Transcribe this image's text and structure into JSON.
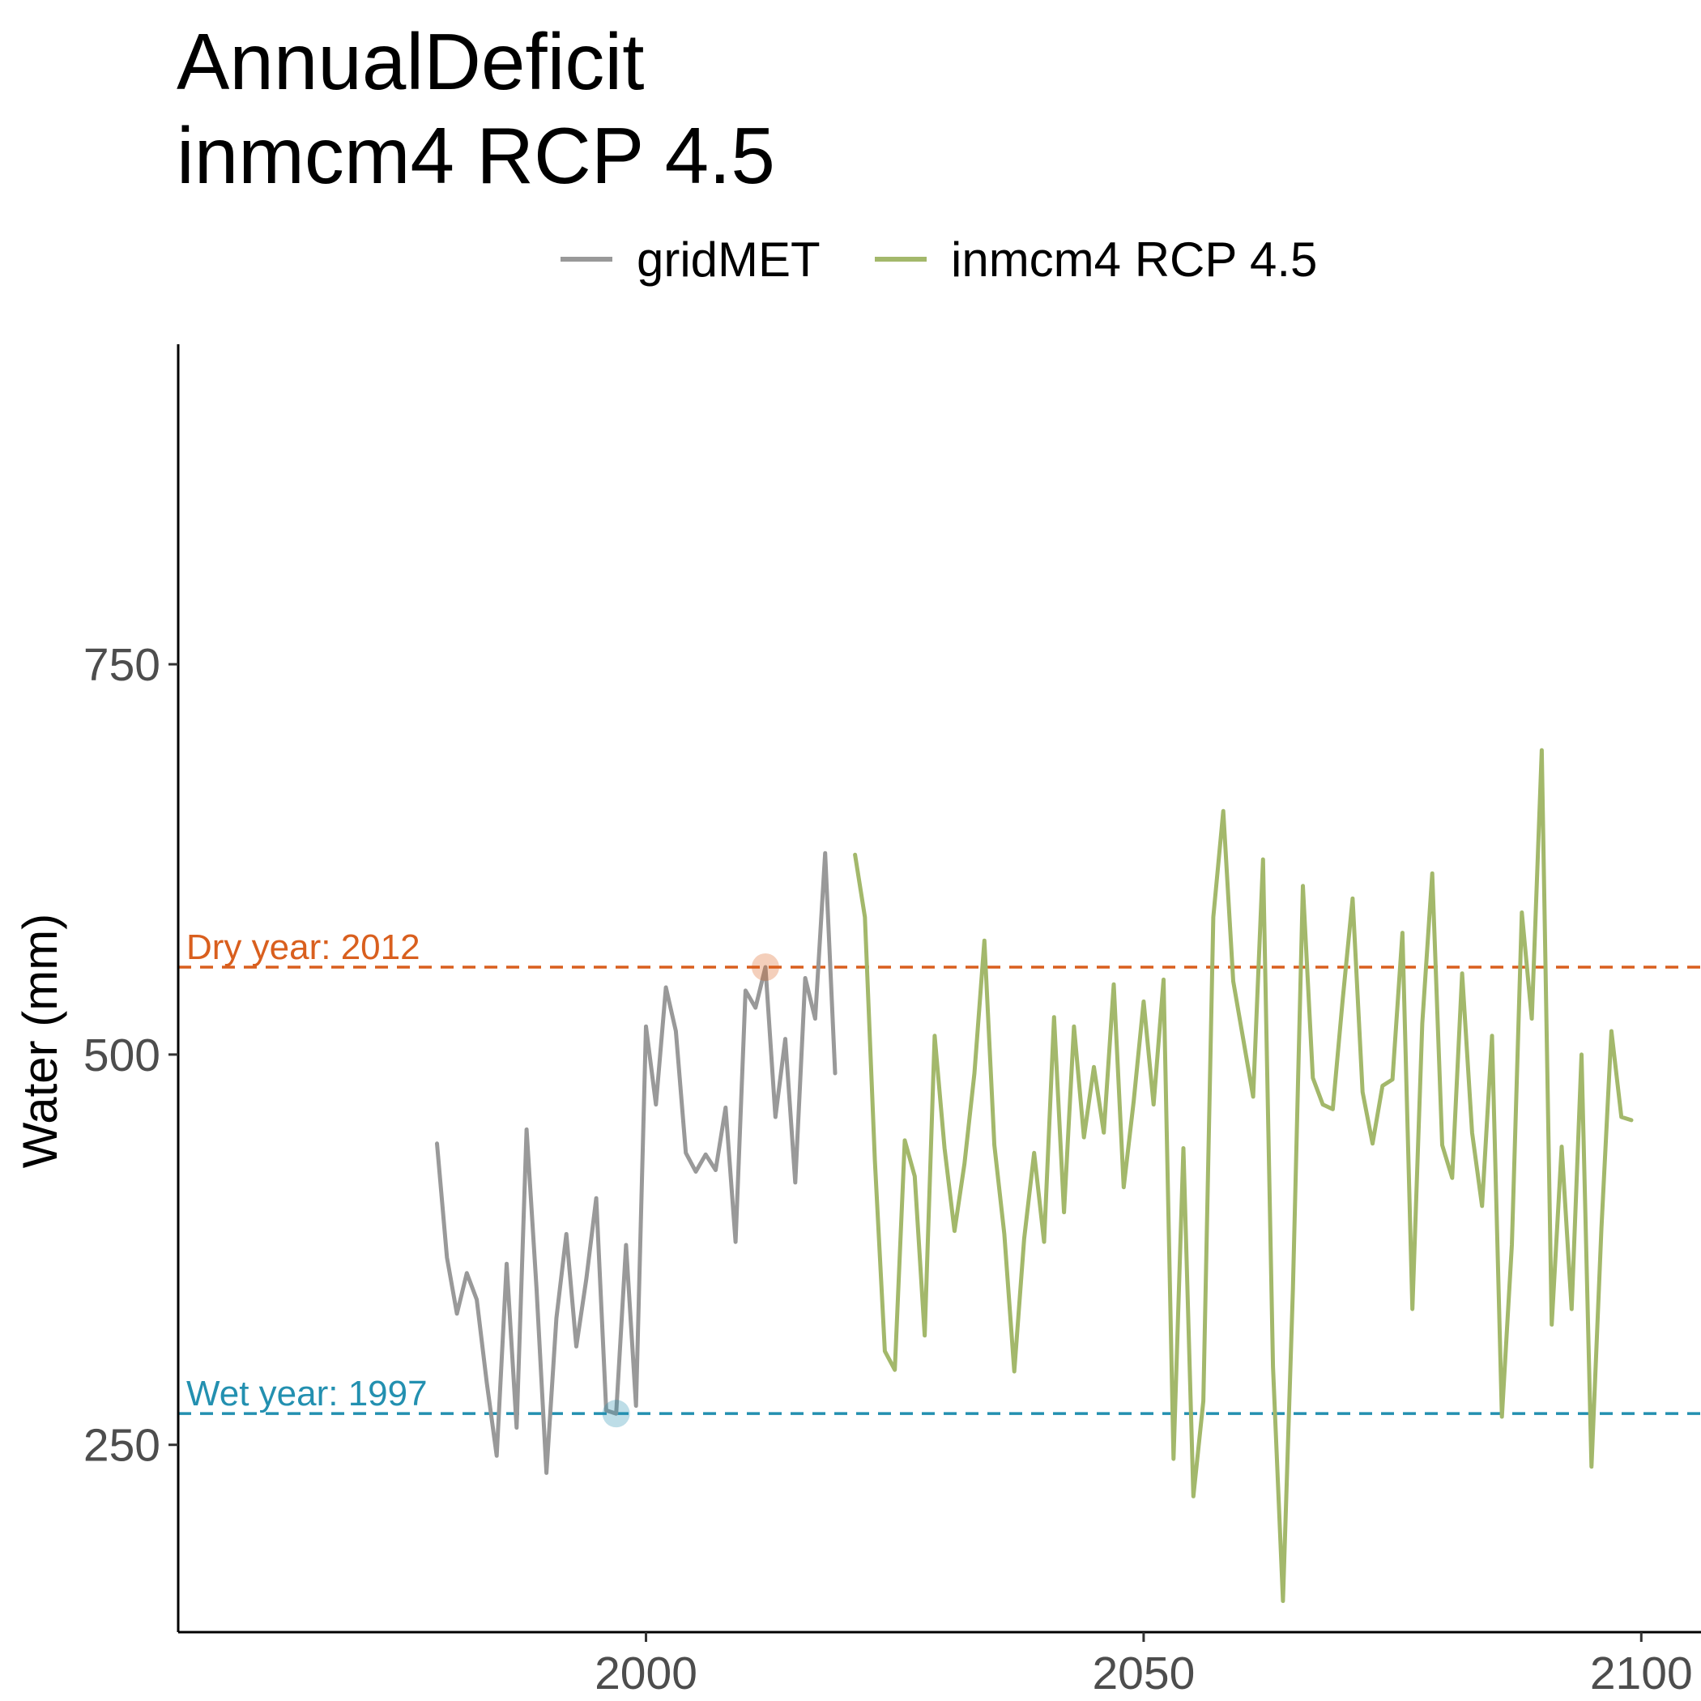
{
  "chart_data": {
    "type": "line",
    "title": "AnnualDeficit",
    "subtitle": "inmcm4 RCP 4.5",
    "xlabel": "",
    "ylabel": "Water (mm)",
    "xlim": [
      1953,
      2106
    ],
    "ylim": [
      130,
      955
    ],
    "x_ticks": [
      2000,
      2050,
      2100
    ],
    "y_ticks": [
      250,
      500,
      750
    ],
    "grid": false,
    "legend_position": "top",
    "series": [
      {
        "name": "gridMET",
        "color": "#999999",
        "x": [
          1979,
          1980,
          1981,
          1982,
          1983,
          1984,
          1985,
          1986,
          1987,
          1988,
          1989,
          1990,
          1991,
          1992,
          1993,
          1994,
          1995,
          1996,
          1997,
          1998,
          1999,
          2000,
          2001,
          2002,
          2003,
          2004,
          2005,
          2006,
          2007,
          2008,
          2009,
          2010,
          2011,
          2012,
          2013,
          2014,
          2015,
          2016,
          2017,
          2018,
          2019
        ],
        "y": [
          443,
          370,
          334,
          360,
          343,
          290,
          243,
          366,
          261,
          452,
          350,
          232,
          331,
          385,
          313,
          356,
          408,
          272,
          270,
          378,
          275,
          518,
          468,
          543,
          515,
          437,
          425,
          436,
          426,
          466,
          380,
          541,
          530,
          556,
          460,
          510,
          418,
          549,
          523,
          629,
          488
        ]
      },
      {
        "name": "inmcm4 RCP 4.5",
        "color": "#a3b86b",
        "x": [
          2021,
          2022,
          2023,
          2024,
          2025,
          2026,
          2027,
          2028,
          2029,
          2030,
          2031,
          2032,
          2033,
          2034,
          2035,
          2036,
          2037,
          2038,
          2039,
          2040,
          2041,
          2042,
          2043,
          2044,
          2045,
          2046,
          2047,
          2048,
          2049,
          2050,
          2051,
          2052,
          2053,
          2054,
          2055,
          2056,
          2057,
          2058,
          2059,
          2060,
          2061,
          2062,
          2063,
          2064,
          2065,
          2066,
          2067,
          2068,
          2069,
          2070,
          2071,
          2072,
          2073,
          2074,
          2075,
          2076,
          2077,
          2078,
          2079,
          2080,
          2081,
          2082,
          2083,
          2084,
          2085,
          2086,
          2087,
          2088,
          2089,
          2090,
          2091,
          2092,
          2093,
          2094,
          2095,
          2096,
          2097,
          2098,
          2099
        ],
        "y": [
          628,
          588,
          432,
          310,
          298,
          445,
          422,
          320,
          512,
          440,
          387,
          430,
          488,
          573,
          442,
          385,
          297,
          382,
          437,
          380,
          524,
          399,
          518,
          447,
          492,
          450,
          545,
          415,
          470,
          534,
          468,
          548,
          241,
          440,
          217,
          278,
          588,
          656,
          547,
          510,
          473,
          625,
          300,
          150,
          350,
          608,
          485,
          468,
          465,
          535,
          600,
          476,
          443,
          480,
          484,
          578,
          337,
          520,
          616,
          442,
          421,
          552,
          450,
          403,
          512,
          268,
          378,
          591,
          523,
          695,
          327,
          441,
          337,
          500,
          236,
          389,
          515,
          460,
          458
        ]
      }
    ],
    "reference_lines": [
      {
        "label": "Dry year: 2012",
        "year": 2012,
        "value": 556,
        "color": "#d95f1e"
      },
      {
        "label": "Wet year: 1997",
        "year": 1997,
        "value": 270,
        "color": "#2390b0"
      }
    ]
  }
}
